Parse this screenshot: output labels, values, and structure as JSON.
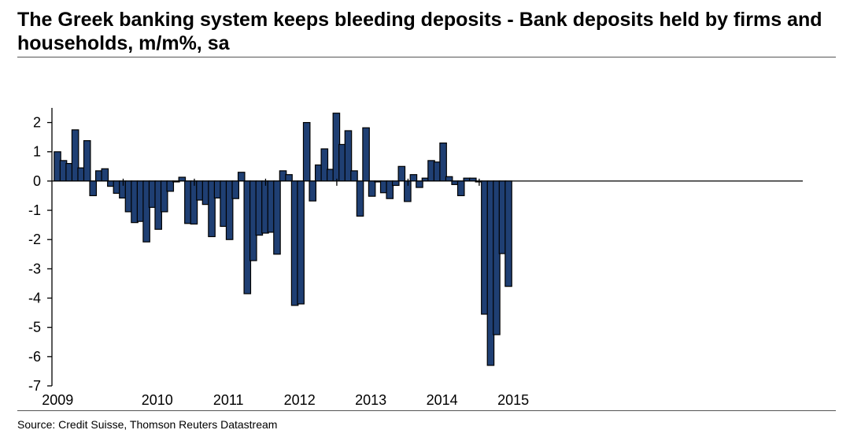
{
  "title": "The Greek banking system keeps bleeding deposits - Bank deposits held by firms and households, m/m%, sa",
  "source": "Source: Credit Suisse, Thomson Reuters Datastream",
  "colors": {
    "bar": "#1f3f73",
    "axis": "#000000"
  },
  "chart_data": {
    "type": "bar",
    "title": "The Greek banking system keeps bleeding deposits - Bank deposits held by firms and households, m/m%, sa",
    "xlabel": "",
    "ylabel": "",
    "ylim": [
      -7,
      2.5
    ],
    "yticks": [
      2,
      1,
      0,
      -1,
      -2,
      -3,
      -4,
      -5,
      -6,
      -7
    ],
    "xticks": [
      "2009",
      "2010",
      "2011",
      "2012",
      "2013",
      "2014",
      "2015"
    ],
    "start": "2009-01",
    "values": [
      1.0,
      0.7,
      0.6,
      1.75,
      0.45,
      1.38,
      -0.5,
      0.35,
      0.42,
      -0.18,
      -0.42,
      -0.58,
      -1.05,
      -1.42,
      -1.38,
      -2.08,
      -0.9,
      -1.65,
      -1.05,
      -0.35,
      -0.03,
      0.13,
      -1.45,
      -1.47,
      -0.65,
      -0.8,
      -1.9,
      -0.58,
      -1.55,
      -2.0,
      -0.6,
      0.3,
      -3.85,
      -2.72,
      -1.85,
      -1.78,
      -1.75,
      -2.5,
      0.35,
      0.22,
      -4.25,
      -4.2,
      2.0,
      -0.68,
      0.55,
      1.1,
      0.4,
      2.32,
      1.25,
      1.72,
      0.35,
      -1.2,
      1.82,
      -0.52,
      -0.03,
      -0.4,
      -0.6,
      -0.15,
      0.5,
      -0.7,
      0.22,
      -0.22,
      0.1,
      0.7,
      0.65,
      1.3,
      0.15,
      -0.12,
      -0.5,
      0.1,
      0.1,
      -0.03,
      -4.55,
      -6.3,
      -5.25,
      -2.48,
      -3.6
    ]
  }
}
